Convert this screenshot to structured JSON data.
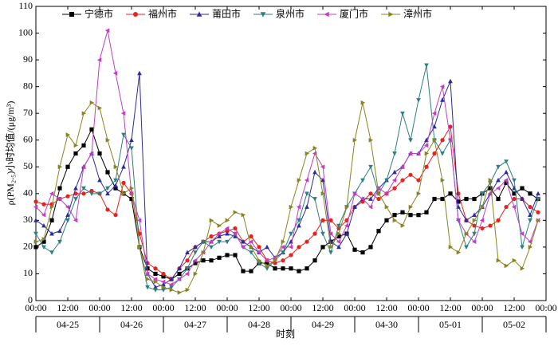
{
  "chart_data": {
    "type": "line",
    "ylabel": "ρ(PM₂.₅)小时均值/(μg/m³)",
    "xlabel": "时刻",
    "x": [
      0,
      3,
      6,
      9,
      12,
      15,
      18,
      21,
      24,
      27,
      30,
      33,
      36,
      39,
      42,
      45,
      48,
      51,
      54,
      57,
      60,
      63,
      66,
      69,
      72,
      75,
      78,
      81,
      84,
      87,
      90,
      93,
      96,
      99,
      102,
      105,
      108,
      111,
      114,
      117,
      120,
      123,
      126,
      129,
      132,
      135,
      138,
      141,
      144,
      147,
      150,
      153,
      156,
      159,
      162,
      165,
      168,
      171,
      174,
      177,
      180,
      183,
      186,
      189
    ],
    "xlim": [
      0,
      192
    ],
    "xticks": [
      {
        "value": 0,
        "label": "00:00"
      },
      {
        "value": 12,
        "label": "12:00"
      },
      {
        "value": 24,
        "label": "00:00"
      },
      {
        "value": 36,
        "label": "12:00"
      },
      {
        "value": 48,
        "label": "00:00"
      },
      {
        "value": 60,
        "label": "12:00"
      },
      {
        "value": 72,
        "label": "00:00"
      },
      {
        "value": 84,
        "label": "12:00"
      },
      {
        "value": 96,
        "label": "00:00"
      },
      {
        "value": 108,
        "label": "12:00"
      },
      {
        "value": 120,
        "label": "00:00"
      },
      {
        "value": 132,
        "label": "12:00"
      },
      {
        "value": 144,
        "label": "00:00"
      },
      {
        "value": 156,
        "label": "12:00"
      },
      {
        "value": 168,
        "label": "00:00"
      },
      {
        "value": 180,
        "label": "12:00"
      },
      {
        "value": 192,
        "label": "00:00"
      }
    ],
    "x_groups": [
      "04-25",
      "04-26",
      "04-27",
      "04-28",
      "04-29",
      "04-30",
      "05-01",
      "05-02"
    ],
    "ylim": [
      0,
      110
    ],
    "yticks": [
      0,
      10,
      20,
      30,
      40,
      50,
      60,
      70,
      80,
      90,
      100,
      110
    ],
    "legend": "top",
    "series": [
      {
        "name": "宁德市",
        "color": "#000000",
        "marker": "square",
        "values": [
          20,
          22,
          30,
          42,
          50,
          55,
          58,
          64,
          55,
          48,
          42,
          40,
          38,
          20,
          12,
          10,
          9,
          8,
          10,
          12,
          14,
          15,
          15,
          16,
          17,
          17,
          11,
          11,
          14,
          14,
          12,
          12,
          12,
          11,
          12,
          15,
          20,
          22,
          24,
          25,
          19,
          18,
          20,
          26,
          30,
          32,
          33,
          32,
          32,
          33,
          38,
          38,
          40,
          37,
          38,
          38,
          40,
          42,
          38,
          44,
          40,
          42,
          40,
          38
        ]
      },
      {
        "name": "福州市",
        "color": "#e8221c",
        "marker": "circle",
        "values": [
          37,
          36,
          36,
          38,
          39,
          40,
          40,
          41,
          40,
          34,
          32,
          44,
          40,
          25,
          14,
          12,
          10,
          8,
          12,
          15,
          20,
          22,
          24,
          25,
          26,
          27,
          22,
          24,
          20,
          15,
          14,
          15,
          17,
          20,
          22,
          25,
          30,
          30,
          27,
          30,
          35,
          37,
          40,
          38,
          40,
          42,
          45,
          47,
          45,
          50,
          55,
          60,
          65,
          40,
          30,
          28,
          27,
          28,
          30,
          35,
          38,
          38,
          35,
          33
        ]
      },
      {
        "name": "莆田市",
        "color": "#2b2b9e",
        "marker": "triangle-up",
        "values": [
          30,
          28,
          25,
          26,
          32,
          42,
          50,
          55,
          45,
          40,
          43,
          50,
          60,
          85,
          10,
          5,
          6,
          8,
          12,
          18,
          20,
          22,
          22,
          24,
          25,
          24,
          22,
          20,
          18,
          20,
          16,
          18,
          22,
          28,
          35,
          48,
          45,
          22,
          20,
          25,
          35,
          38,
          38,
          42,
          45,
          48,
          50,
          55,
          55,
          60,
          65,
          75,
          82,
          35,
          30,
          32,
          35,
          40,
          45,
          48,
          42,
          38,
          32,
          40
        ]
      },
      {
        "name": "泉州市",
        "color": "#2e7f7f",
        "marker": "triangle-down",
        "values": [
          25,
          20,
          18,
          22,
          30,
          38,
          42,
          40,
          40,
          42,
          45,
          62,
          57,
          20,
          5,
          4,
          4,
          5,
          8,
          12,
          18,
          22,
          20,
          22,
          22,
          25,
          20,
          18,
          14,
          12,
          15,
          18,
          25,
          30,
          40,
          38,
          25,
          18,
          28,
          35,
          40,
          45,
          50,
          40,
          45,
          55,
          70,
          60,
          75,
          88,
          60,
          55,
          60,
          30,
          20,
          25,
          40,
          44,
          50,
          52,
          45,
          20,
          30,
          38
        ]
      },
      {
        "name": "厦门市",
        "color": "#c13fc1",
        "marker": "triangle-left",
        "values": [
          35,
          32,
          40,
          38,
          35,
          30,
          50,
          55,
          90,
          101,
          85,
          70,
          40,
          30,
          10,
          8,
          7,
          6,
          8,
          10,
          15,
          18,
          22,
          25,
          27,
          25,
          20,
          22,
          18,
          15,
          16,
          20,
          20,
          35,
          45,
          55,
          50,
          25,
          22,
          28,
          40,
          38,
          35,
          42,
          40,
          45,
          50,
          55,
          55,
          58,
          70,
          80,
          60,
          30,
          25,
          22,
          30,
          40,
          42,
          45,
          35,
          25,
          22,
          30
        ]
      },
      {
        "name": "漳州市",
        "color": "#8a8420",
        "marker": "triangle-right",
        "values": [
          22,
          23,
          35,
          50,
          62,
          58,
          70,
          74,
          72,
          60,
          50,
          40,
          42,
          20,
          8,
          7,
          5,
          4,
          3,
          4,
          10,
          18,
          30,
          28,
          30,
          33,
          32,
          20,
          15,
          13,
          15,
          22,
          35,
          45,
          55,
          57,
          40,
          20,
          25,
          35,
          60,
          74,
          60,
          40,
          35,
          30,
          28,
          35,
          40,
          55,
          60,
          45,
          20,
          18,
          25,
          30,
          35,
          45,
          15,
          13,
          15,
          12,
          20,
          30
        ]
      }
    ]
  }
}
